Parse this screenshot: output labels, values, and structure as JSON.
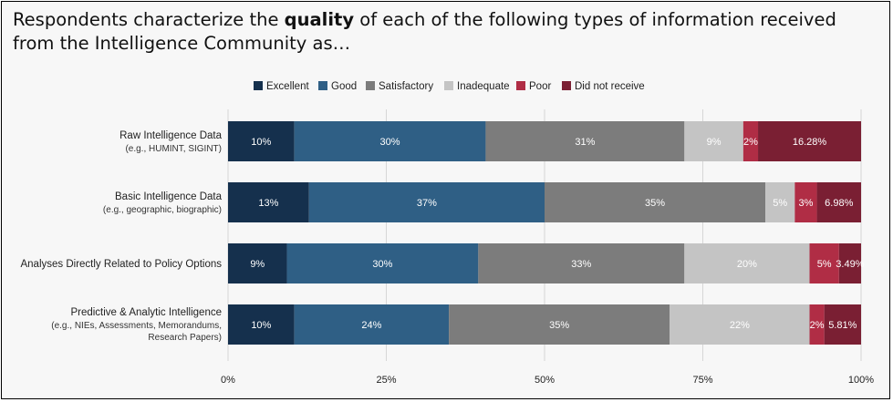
{
  "title": {
    "before": "Respondents characterize the ",
    "bold": "quality",
    "after": " of each of the following types of information received from the Intelligence Community as…"
  },
  "colors": {
    "Excellent": "#15304d",
    "Good": "#2f5f85",
    "Satisfactory": "#7c7c7c",
    "Inadequate": "#c4c4c4",
    "Poor": "#b02d45",
    "Did not receive": "#7a1f33"
  },
  "chart_data": {
    "type": "bar",
    "orientation": "horizontal",
    "stacked": true,
    "title": "Respondents characterize the quality of each of the following types of information received from the Intelligence Community as…",
    "categories": [
      {
        "label": "Raw Intelligence Data",
        "sublabel": [
          "(e.g., HUMINT, SIGINT)"
        ]
      },
      {
        "label": "Basic Intelligence Data",
        "sublabel": [
          "(e.g., geographic, biographic)"
        ]
      },
      {
        "label": "Analyses Directly Related to Policy Options",
        "sublabel": []
      },
      {
        "label": "Predictive & Analytic Intelligence",
        "sublabel": [
          "(e.g., NIEs, Assessments, Memorandums,",
          "Research Papers)"
        ]
      }
    ],
    "series": [
      {
        "name": "Excellent",
        "values": [
          10.47,
          12.79,
          9.3,
          10.47
        ],
        "labels": [
          "10%",
          "13%",
          "9%",
          "10%"
        ]
      },
      {
        "name": "Good",
        "values": [
          30.23,
          37.21,
          30.23,
          24.42
        ],
        "labels": [
          "30%",
          "37%",
          "30%",
          "24%"
        ]
      },
      {
        "name": "Satisfactory",
        "values": [
          31.4,
          34.88,
          32.56,
          34.88
        ],
        "labels": [
          "31%",
          "35%",
          "33%",
          "35%"
        ]
      },
      {
        "name": "Inadequate",
        "values": [
          9.3,
          4.65,
          19.77,
          22.09
        ],
        "labels": [
          "9%",
          "5%",
          "20%",
          "22%"
        ]
      },
      {
        "name": "Poor",
        "values": [
          2.33,
          3.49,
          4.65,
          2.33
        ],
        "labels": [
          "2%",
          "3%",
          "5%",
          "2%"
        ]
      },
      {
        "name": "Did not receive",
        "values": [
          16.28,
          6.98,
          3.49,
          5.81
        ],
        "labels": [
          "16.28%",
          "6.98%",
          "3.49%",
          "5.81%"
        ]
      }
    ],
    "xlim": [
      0,
      100
    ],
    "xticks": [
      "0%",
      "25%",
      "50%",
      "75%",
      "100%"
    ],
    "legend_position": "top",
    "grid": true
  }
}
